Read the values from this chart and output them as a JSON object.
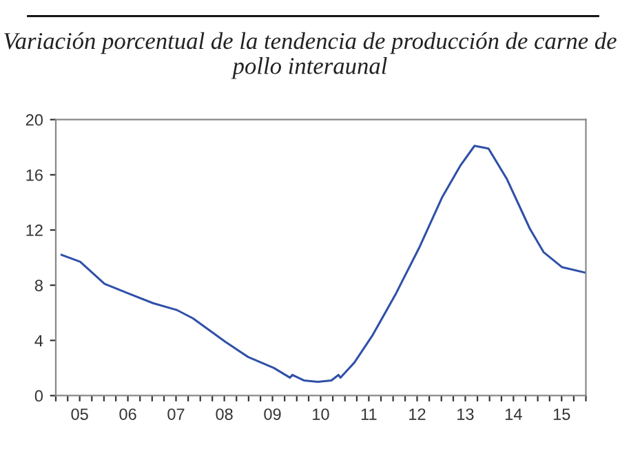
{
  "chart_data": {
    "type": "line",
    "title": "Variación porcentual de la tendencia de producción de carne de pollo interaunal",
    "x": [
      "2005-02-14",
      "2005-07-05",
      "2006-01-05",
      "2006-07-05",
      "2007-01-08",
      "2007-07-08",
      "2007-11-06",
      "2008-07-08",
      "2008-12-28",
      "2009-07-12",
      "2009-11-10",
      "2009-11-28",
      "2010-02-24",
      "2010-06-10",
      "2010-09-20",
      "2010-11-13",
      "2010-11-28",
      "2011-03-14",
      "2011-07-31",
      "2012-01-23",
      "2012-07-16",
      "2013-01-08",
      "2013-05-27",
      "2013-09-09",
      "2013-12-24",
      "2014-05-12",
      "2014-11-02",
      "2015-02-14",
      "2015-07-05",
      "2016-01-01"
    ],
    "series": [
      {
        "color": "#2f50a8",
        "values": [
          10.2,
          9.7,
          8.1,
          7.4,
          6.7,
          6.2,
          5.6,
          3.9,
          2.8,
          2.0,
          1.3,
          1.5,
          1.1,
          1.0,
          1.1,
          1.5,
          1.3,
          2.4,
          4.4,
          7.4,
          10.7,
          14.4,
          16.7,
          18.1,
          17.9,
          15.7,
          12.1,
          10.4,
          9.3,
          8.9
        ]
      }
    ],
    "xlim": [
      "2005-01-01",
      "2016-01-01"
    ],
    "xticks": [
      {
        "value": "2005-01-01",
        "label": null
      },
      {
        "value": "2005-04-01",
        "label": null
      },
      {
        "value": "2005-07-01",
        "label": "05"
      },
      {
        "value": "2005-10-01",
        "label": null
      },
      {
        "value": "2006-01-01",
        "label": null
      },
      {
        "value": "2006-04-01",
        "label": null
      },
      {
        "value": "2006-07-01",
        "label": "06"
      },
      {
        "value": "2006-10-01",
        "label": null
      },
      {
        "value": "2007-01-01",
        "label": null
      },
      {
        "value": "2007-04-01",
        "label": null
      },
      {
        "value": "2007-07-01",
        "label": "07"
      },
      {
        "value": "2007-10-01",
        "label": null
      },
      {
        "value": "2008-01-01",
        "label": null
      },
      {
        "value": "2008-04-01",
        "label": null
      },
      {
        "value": "2008-07-01",
        "label": "08"
      },
      {
        "value": "2008-10-01",
        "label": null
      },
      {
        "value": "2009-01-01",
        "label": null
      },
      {
        "value": "2009-04-01",
        "label": null
      },
      {
        "value": "2009-07-01",
        "label": "09"
      },
      {
        "value": "2009-10-01",
        "label": null
      },
      {
        "value": "2010-01-01",
        "label": null
      },
      {
        "value": "2010-04-01",
        "label": null
      },
      {
        "value": "2010-07-01",
        "label": "10"
      },
      {
        "value": "2010-10-01",
        "label": null
      },
      {
        "value": "2011-01-01",
        "label": null
      },
      {
        "value": "2011-04-01",
        "label": null
      },
      {
        "value": "2011-07-01",
        "label": "11"
      },
      {
        "value": "2011-10-01",
        "label": null
      },
      {
        "value": "2012-01-01",
        "label": null
      },
      {
        "value": "2012-04-01",
        "label": null
      },
      {
        "value": "2012-07-01",
        "label": "12"
      },
      {
        "value": "2012-10-01",
        "label": null
      },
      {
        "value": "2013-01-01",
        "label": null
      },
      {
        "value": "2013-04-01",
        "label": null
      },
      {
        "value": "2013-07-01",
        "label": "13"
      },
      {
        "value": "2013-10-01",
        "label": null
      },
      {
        "value": "2014-01-01",
        "label": null
      },
      {
        "value": "2014-04-01",
        "label": null
      },
      {
        "value": "2014-07-01",
        "label": "14"
      },
      {
        "value": "2014-10-01",
        "label": null
      },
      {
        "value": "2015-01-01",
        "label": null
      },
      {
        "value": "2015-04-01",
        "label": null
      },
      {
        "value": "2015-07-01",
        "label": "15"
      },
      {
        "value": "2015-10-01",
        "label": null
      },
      {
        "value": "2016-01-01",
        "label": null
      }
    ],
    "ylim": [
      0,
      20
    ],
    "yticks": [
      0,
      4,
      8,
      12,
      16,
      20
    ],
    "grid": false,
    "marker": "none",
    "line_style": "solid"
  }
}
